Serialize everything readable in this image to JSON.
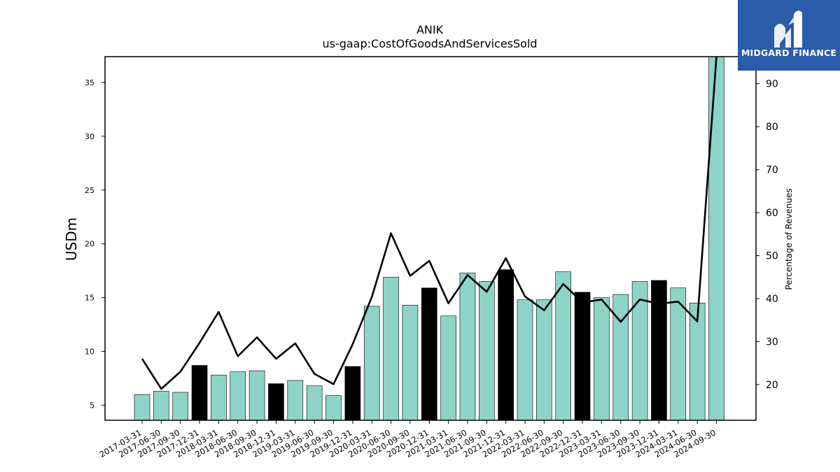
{
  "chart_data": {
    "type": "bar",
    "title": "ANIK",
    "subtitle": "us-gaap:CostOfGoodsAndServicesSold",
    "ylabel": "USDm",
    "y2label": "Percentage of Revenues",
    "ylim": [
      3.6,
      37.4
    ],
    "y2lim": [
      11.7,
      96.3
    ],
    "yticks": [
      5,
      10,
      15,
      20,
      25,
      30,
      35
    ],
    "y2ticks": [
      20,
      30,
      40,
      50,
      60,
      70,
      80,
      90
    ],
    "categories": [
      "2017-03-31",
      "2017-06-30",
      "2017-09-30",
      "2017-12-31",
      "2018-03-31",
      "2018-06-30",
      "2018-09-30",
      "2018-12-31",
      "2019-03-31",
      "2019-06-30",
      "2019-09-30",
      "2019-12-31",
      "2020-03-31",
      "2020-06-30",
      "2020-09-30",
      "2020-12-31",
      "2021-03-31",
      "2021-06-30",
      "2021-09-30",
      "2021-12-31",
      "2022-03-31",
      "2022-06-30",
      "2022-09-30",
      "2022-12-31",
      "2023-03-31",
      "2023-06-30",
      "2023-09-30",
      "2023-12-31",
      "2024-03-31",
      "2024-06-30",
      "2024-09-30"
    ],
    "series": [
      {
        "values": [
          6.0,
          6.3,
          6.2,
          8.7,
          7.8,
          8.1,
          8.2,
          7.0,
          7.3,
          6.8,
          5.9,
          8.6,
          14.2,
          16.9,
          14.3,
          15.9,
          13.3,
          17.3,
          16.5,
          17.6,
          14.8,
          14.8,
          17.4,
          15.5,
          15.0,
          15.3,
          16.5,
          16.6,
          15.9,
          14.5,
          37.4
        ],
        "highlight": [
          false,
          false,
          false,
          true,
          false,
          false,
          false,
          true,
          false,
          false,
          false,
          true,
          false,
          false,
          false,
          true,
          false,
          false,
          false,
          true,
          false,
          false,
          false,
          true,
          false,
          false,
          false,
          true,
          false,
          false,
          false
        ],
        "color": "#8dd3c7",
        "highlight_color": "#000000"
      },
      {
        "type": "line",
        "axis": "right",
        "values": [
          26,
          19,
          23,
          29.7,
          36.9,
          26.6,
          31,
          26,
          29.6,
          22.5,
          20.1,
          29.4,
          40.4,
          55.2,
          45.3,
          48.8,
          38.9,
          45.5,
          41.6,
          49.4,
          40.5,
          37.3,
          43.4,
          39.1,
          39.8,
          34.6,
          39.8,
          38.8,
          39.3,
          34.7,
          96.3
        ],
        "color": "#000000"
      }
    ]
  },
  "logo": {
    "text": "MIDGARD FINANCE",
    "background": "#2a5caa"
  }
}
